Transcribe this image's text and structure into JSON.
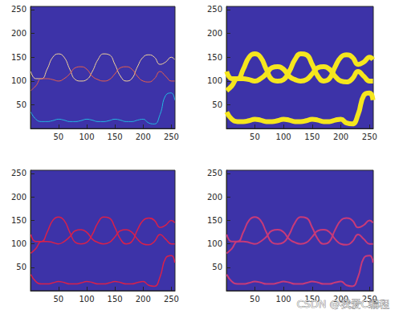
{
  "chart_data": [
    {
      "type": "line",
      "x": [
        1,
        10,
        20,
        30,
        40,
        50,
        60,
        70,
        80,
        90,
        100,
        110,
        120,
        130,
        140,
        150,
        160,
        170,
        180,
        190,
        200,
        210,
        220,
        230,
        240,
        250,
        256
      ],
      "xlim": [
        0.5,
        256.5
      ],
      "ylim": [
        0.5,
        256.5
      ],
      "xticks": [
        50,
        100,
        150,
        200,
        250
      ],
      "yticks": [
        50,
        100,
        150,
        200,
        250
      ],
      "series": [
        {
          "color": "#f5d59a",
          "values": [
            120,
            105,
            105,
            125,
            150,
            157,
            150,
            125,
            103,
            100,
            103,
            120,
            145,
            157,
            155,
            135,
            110,
            100,
            105,
            130,
            150,
            155,
            150,
            135,
            140,
            150,
            145
          ]
        },
        {
          "color": "#e8604a",
          "values": [
            80,
            90,
            105,
            105,
            103,
            100,
            105,
            115,
            128,
            130,
            125,
            110,
            103,
            100,
            103,
            115,
            128,
            130,
            125,
            110,
            100,
            98,
            105,
            120,
            110,
            100,
            100
          ]
        },
        {
          "color": "#22b8e0",
          "values": [
            35,
            20,
            15,
            15,
            17,
            20,
            18,
            15,
            15,
            17,
            20,
            18,
            15,
            15,
            17,
            20,
            18,
            15,
            15,
            18,
            20,
            12,
            10,
            30,
            70,
            75,
            60
          ]
        }
      ]
    },
    {
      "type": "line",
      "x": [
        1,
        10,
        20,
        30,
        40,
        50,
        60,
        70,
        80,
        90,
        100,
        110,
        120,
        130,
        140,
        150,
        160,
        170,
        180,
        190,
        200,
        210,
        220,
        230,
        240,
        250,
        256
      ],
      "xlim": [
        0.5,
        256.5
      ],
      "ylim": [
        0.5,
        256.5
      ],
      "xticks": [
        50,
        100,
        150,
        200,
        250
      ],
      "yticks": [
        50,
        100,
        150,
        200,
        250
      ],
      "series": [
        {
          "color": "#f5e61e",
          "values": [
            120,
            105,
            105,
            125,
            150,
            157,
            150,
            125,
            103,
            100,
            103,
            120,
            145,
            157,
            155,
            135,
            110,
            100,
            105,
            130,
            150,
            155,
            150,
            135,
            140,
            150,
            145
          ]
        },
        {
          "color": "#f5e61e",
          "values": [
            80,
            90,
            105,
            105,
            103,
            100,
            105,
            115,
            128,
            130,
            125,
            110,
            103,
            100,
            103,
            115,
            128,
            130,
            125,
            110,
            100,
            98,
            105,
            120,
            110,
            100,
            100
          ]
        },
        {
          "color": "#f5e61e",
          "values": [
            35,
            20,
            15,
            15,
            17,
            20,
            18,
            15,
            15,
            17,
            20,
            18,
            15,
            15,
            17,
            20,
            18,
            15,
            15,
            18,
            20,
            12,
            10,
            30,
            70,
            75,
            60
          ]
        }
      ]
    },
    {
      "type": "line",
      "x": [
        1,
        10,
        20,
        30,
        40,
        50,
        60,
        70,
        80,
        90,
        100,
        110,
        120,
        130,
        140,
        150,
        160,
        170,
        180,
        190,
        200,
        210,
        220,
        230,
        240,
        250,
        256
      ],
      "xlim": [
        0.5,
        256.5
      ],
      "ylim": [
        0.5,
        256.5
      ],
      "xticks": [
        50,
        100,
        150,
        200,
        250
      ],
      "yticks": [
        50,
        100,
        150,
        200,
        250
      ],
      "series": [
        {
          "color": "#d9204a",
          "values": [
            120,
            105,
            105,
            125,
            150,
            157,
            150,
            125,
            103,
            100,
            103,
            120,
            145,
            157,
            155,
            135,
            110,
            100,
            105,
            130,
            150,
            155,
            150,
            135,
            140,
            150,
            145
          ]
        },
        {
          "color": "#d9204a",
          "values": [
            80,
            90,
            105,
            105,
            103,
            100,
            105,
            115,
            128,
            130,
            125,
            110,
            103,
            100,
            103,
            115,
            128,
            130,
            125,
            110,
            100,
            98,
            105,
            120,
            110,
            100,
            100
          ]
        },
        {
          "color": "#d9204a",
          "values": [
            35,
            20,
            15,
            15,
            17,
            20,
            18,
            15,
            15,
            17,
            20,
            18,
            15,
            15,
            17,
            20,
            18,
            15,
            15,
            18,
            20,
            12,
            10,
            30,
            70,
            75,
            60
          ]
        }
      ]
    },
    {
      "type": "line",
      "x": [
        1,
        10,
        20,
        30,
        40,
        50,
        60,
        70,
        80,
        90,
        100,
        110,
        120,
        130,
        140,
        150,
        160,
        170,
        180,
        190,
        200,
        210,
        220,
        230,
        240,
        250,
        256
      ],
      "xlim": [
        0.5,
        256.5
      ],
      "ylim": [
        0.5,
        256.5
      ],
      "xticks": [
        50,
        100,
        150,
        200,
        250
      ],
      "yticks": [
        50,
        100,
        150,
        200,
        250
      ],
      "annotation": "CSDN @我爱C编程",
      "series": [
        {
          "color": "#c83a78",
          "values": [
            120,
            105,
            105,
            125,
            150,
            157,
            150,
            125,
            103,
            100,
            103,
            120,
            145,
            157,
            155,
            135,
            110,
            100,
            105,
            130,
            150,
            155,
            150,
            135,
            140,
            150,
            145
          ]
        },
        {
          "color": "#c83a78",
          "values": [
            80,
            90,
            105,
            105,
            103,
            100,
            105,
            115,
            128,
            130,
            125,
            110,
            103,
            100,
            103,
            115,
            128,
            130,
            125,
            110,
            100,
            98,
            105,
            120,
            110,
            100,
            100
          ]
        },
        {
          "color": "#c83a78",
          "values": [
            35,
            20,
            15,
            15,
            17,
            20,
            18,
            15,
            15,
            17,
            20,
            18,
            15,
            15,
            17,
            20,
            18,
            15,
            15,
            18,
            20,
            12,
            10,
            30,
            70,
            75,
            60
          ]
        }
      ]
    }
  ]
}
